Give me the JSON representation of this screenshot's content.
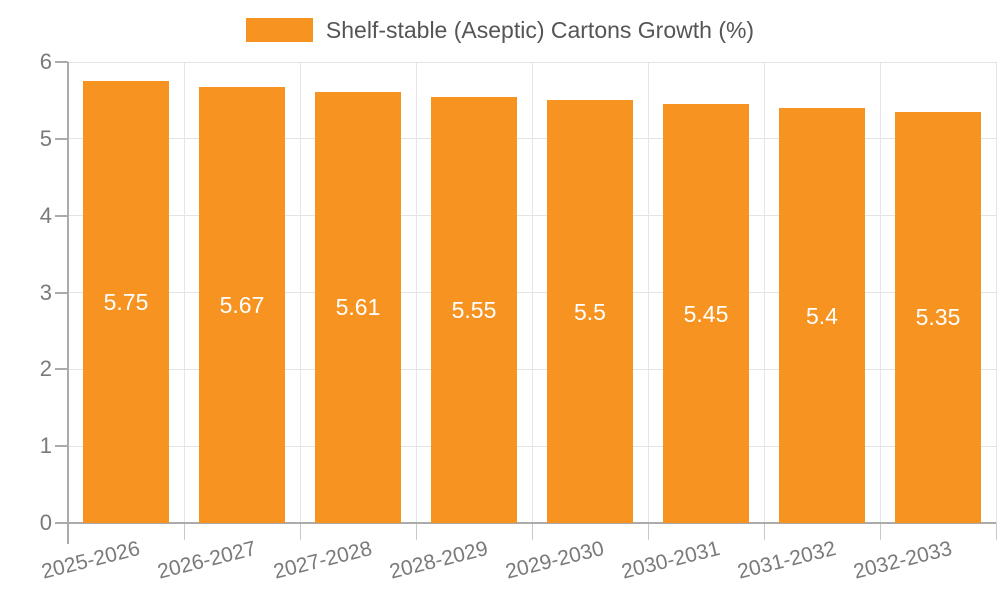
{
  "legend": {
    "swatch_icon": "legend-color-swatch"
  },
  "chart_data": {
    "type": "bar",
    "title": "Shelf-stable (Aseptic) Cartons Growth (%)",
    "series_name": "Shelf-stable (Aseptic) Cartons Growth (%)",
    "categories": [
      "2025-2026",
      "2026-2027",
      "2027-2028",
      "2028-2029",
      "2029-2030",
      "2030-2031",
      "2031-2032",
      "2032-2033"
    ],
    "values": [
      5.75,
      5.67,
      5.61,
      5.55,
      5.5,
      5.45,
      5.4,
      5.35
    ],
    "bar_value_labels": [
      "5.75",
      "5.67",
      "5.61",
      "5.55",
      "5.5",
      "5.45",
      "5.4",
      "5.35"
    ],
    "xlabel": "",
    "ylabel": "",
    "ylim": [
      0,
      6
    ],
    "y_ticks": [
      0,
      1,
      2,
      3,
      4,
      5,
      6
    ],
    "y_tick_labels": [
      "0",
      "1",
      "2",
      "3",
      "4",
      "5",
      "6"
    ],
    "grid": true,
    "legend_position": "top",
    "x_label_rotation_deg": -14,
    "colors": {
      "bar": "#F79421",
      "bar_value_label": "#FFFFFF",
      "grid": "#E4E4E4",
      "axis_line": "#ABABAB",
      "tick": "#C9C9C9",
      "axis_tick_label": "#7A7A7A",
      "legend_text": "#555555",
      "background": "#FFFFFF"
    }
  }
}
